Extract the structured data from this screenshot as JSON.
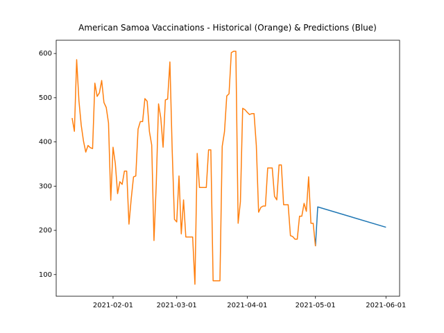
{
  "chart_data": {
    "type": "line",
    "title": "American Samoa Vaccinations - Historical (Orange) & Predictions (Blue)",
    "series": [
      {
        "color": "#1f77b4",
        "x": [
          "2021-05-01",
          "2021-05-02",
          "2021-06-01"
        ],
        "values": [
          164,
          253,
          207
        ]
      },
      {
        "color": "#ff7f0e",
        "x": [
          "2021-01-14",
          "2021-01-15",
          "2021-01-16",
          "2021-01-17",
          "2021-01-18",
          "2021-01-19",
          "2021-01-20",
          "2021-01-21",
          "2021-01-22",
          "2021-01-23",
          "2021-01-24",
          "2021-01-25",
          "2021-01-26",
          "2021-01-27",
          "2021-01-28",
          "2021-01-29",
          "2021-01-30",
          "2021-01-31",
          "2021-02-01",
          "2021-02-02",
          "2021-02-03",
          "2021-02-04",
          "2021-02-05",
          "2021-02-06",
          "2021-02-07",
          "2021-02-08",
          "2021-02-09",
          "2021-02-10",
          "2021-02-11",
          "2021-02-12",
          "2021-02-13",
          "2021-02-14",
          "2021-02-15",
          "2021-02-16",
          "2021-02-17",
          "2021-02-18",
          "2021-02-19",
          "2021-02-20",
          "2021-02-21",
          "2021-02-22",
          "2021-02-23",
          "2021-02-24",
          "2021-02-25",
          "2021-02-26",
          "2021-02-27",
          "2021-02-28",
          "2021-03-01",
          "2021-03-02",
          "2021-03-03",
          "2021-03-04",
          "2021-03-05",
          "2021-03-06",
          "2021-03-07",
          "2021-03-08",
          "2021-03-09",
          "2021-03-10",
          "2021-03-11",
          "2021-03-12",
          "2021-03-13",
          "2021-03-14",
          "2021-03-15",
          "2021-03-16",
          "2021-03-17",
          "2021-03-18",
          "2021-03-19",
          "2021-03-20",
          "2021-03-21",
          "2021-03-22",
          "2021-03-23",
          "2021-03-24",
          "2021-03-25",
          "2021-03-26",
          "2021-03-27",
          "2021-03-28",
          "2021-03-29",
          "2021-03-30",
          "2021-03-31",
          "2021-04-01",
          "2021-04-02",
          "2021-04-03",
          "2021-04-04",
          "2021-04-05",
          "2021-04-06",
          "2021-04-07",
          "2021-04-08",
          "2021-04-09",
          "2021-04-10",
          "2021-04-11",
          "2021-04-12",
          "2021-04-13",
          "2021-04-14",
          "2021-04-15",
          "2021-04-16",
          "2021-04-17",
          "2021-04-18",
          "2021-04-19",
          "2021-04-20",
          "2021-04-21",
          "2021-04-22",
          "2021-04-23",
          "2021-04-24",
          "2021-04-25",
          "2021-04-26",
          "2021-04-27",
          "2021-04-28",
          "2021-04-29",
          "2021-04-30",
          "2021-05-01"
        ],
        "values": [
          454,
          424,
          586,
          493,
          438,
          402,
          377,
          392,
          387,
          385,
          533,
          503,
          511,
          539,
          489,
          478,
          443,
          268,
          388,
          351,
          283,
          310,
          304,
          334,
          334,
          214,
          272,
          321,
          323,
          429,
          446,
          446,
          498,
          492,
          423,
          393,
          177,
          305,
          486,
          454,
          388,
          495,
          497,
          581,
          382,
          225,
          219,
          323,
          192,
          269,
          185,
          185,
          185,
          185,
          78,
          374,
          297,
          297,
          297,
          297,
          382,
          382,
          86,
          86,
          86,
          86,
          390,
          423,
          504,
          509,
          602,
          605,
          605,
          216,
          265,
          476,
          473,
          467,
          462,
          464,
          464,
          392,
          241,
          252,
          255,
          255,
          341,
          341,
          341,
          277,
          269,
          348,
          348,
          258,
          258,
          258,
          188,
          186,
          180,
          180,
          232,
          232,
          261,
          243,
          321,
          216,
          216,
          164
        ]
      }
    ],
    "xlim": [
      "2021-01-07",
      "2021-06-07"
    ],
    "xticks": [
      "2021-02-01",
      "2021-03-01",
      "2021-04-01",
      "2021-05-01",
      "2021-06-01"
    ],
    "ylim": [
      51,
      630
    ],
    "yticks": [
      100,
      200,
      300,
      400,
      500,
      600
    ],
    "grid": false
  }
}
